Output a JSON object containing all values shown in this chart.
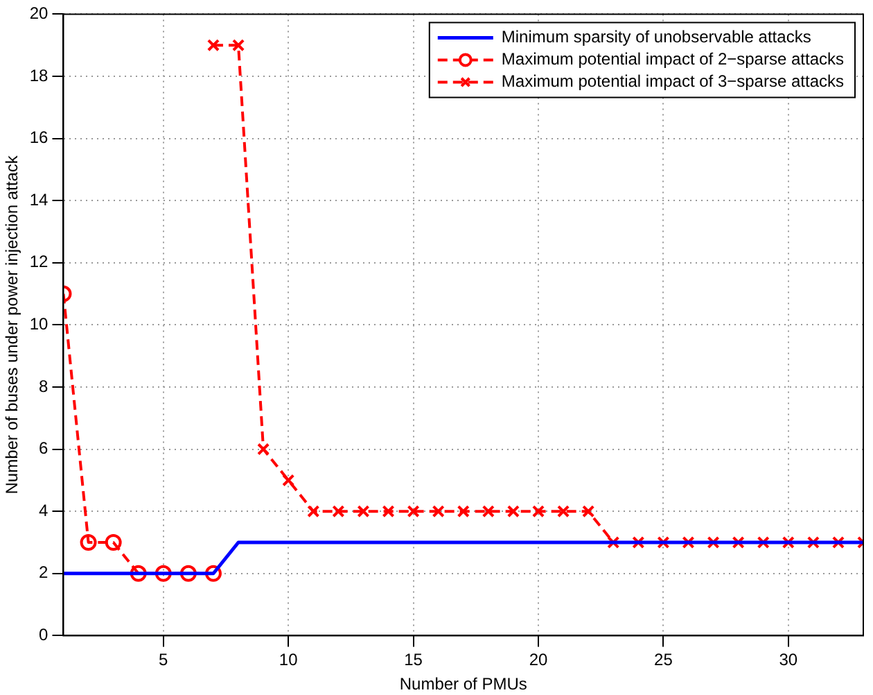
{
  "chart_data": {
    "type": "line",
    "xlabel": "Number of PMUs",
    "ylabel": "Number of buses under power injection attack",
    "xlim": [
      1,
      33
    ],
    "xticks": [
      5,
      10,
      15,
      20,
      25,
      30
    ],
    "ylim": [
      0,
      20
    ],
    "yticks": [
      0,
      2,
      4,
      6,
      8,
      10,
      12,
      14,
      16,
      18,
      20
    ],
    "grid": true,
    "legend": "top right",
    "series": [
      {
        "name": "Minimum sparsity of unobservable attacks",
        "color": "#0000ff",
        "marker": "none",
        "line_style": "solid",
        "x": [
          1,
          2,
          3,
          4,
          5,
          6,
          7,
          8,
          9,
          10,
          11,
          12,
          13,
          14,
          15,
          16,
          17,
          18,
          19,
          20,
          21,
          22,
          23,
          24,
          25,
          26,
          27,
          28,
          29,
          30,
          31,
          32,
          33
        ],
        "values": [
          2,
          2,
          2,
          2,
          2,
          2,
          2,
          3,
          3,
          3,
          3,
          3,
          3,
          3,
          3,
          3,
          3,
          3,
          3,
          3,
          3,
          3,
          3,
          3,
          3,
          3,
          3,
          3,
          3,
          3,
          3,
          3,
          3
        ]
      },
      {
        "name": "Maximum potential impact of 2−sparse attacks",
        "color": "#ff0000",
        "marker": "circle",
        "line_style": "dashed",
        "x": [
          1,
          2,
          3,
          4,
          5,
          6,
          7
        ],
        "values": [
          11,
          3,
          3,
          2,
          2,
          2,
          2
        ]
      },
      {
        "name": "Maximum potential impact of 3−sparse attacks",
        "color": "#ff0000",
        "marker": "cross",
        "line_style": "dashed",
        "x": [
          7,
          8,
          9,
          10,
          11,
          12,
          13,
          14,
          15,
          16,
          17,
          18,
          19,
          20,
          21,
          22,
          23,
          24,
          25,
          26,
          27,
          28,
          29,
          30,
          31,
          32,
          33
        ],
        "values": [
          19,
          19,
          6,
          5,
          4,
          4,
          4,
          4,
          4,
          4,
          4,
          4,
          4,
          4,
          4,
          4,
          3,
          3,
          3,
          3,
          3,
          3,
          3,
          3,
          3,
          3,
          3
        ]
      }
    ]
  }
}
